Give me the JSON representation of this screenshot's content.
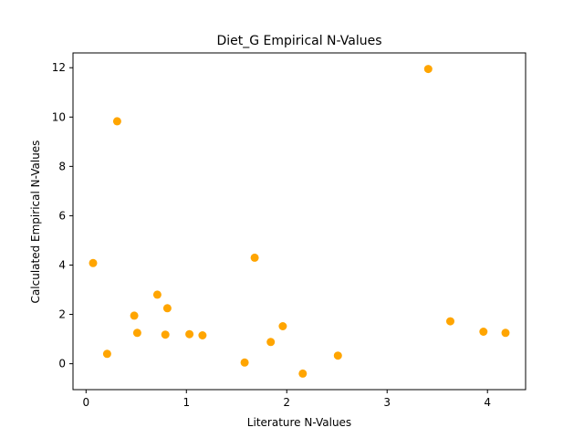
{
  "chart_data": {
    "type": "scatter",
    "title": "Diet_G Empirical N-Values",
    "xlabel": "Literature N-Values",
    "ylabel": "Calculated Empirical N-Values",
    "xlim": [
      -0.13,
      4.38
    ],
    "ylim": [
      -1.05,
      12.6
    ],
    "xticks": [
      0,
      1,
      2,
      3,
      4
    ],
    "yticks": [
      0,
      2,
      4,
      6,
      8,
      10,
      12
    ],
    "grid": false,
    "marker_color": "#ffa500",
    "points": [
      {
        "x": 0.07,
        "y": 4.08
      },
      {
        "x": 0.21,
        "y": 0.4
      },
      {
        "x": 0.31,
        "y": 9.83
      },
      {
        "x": 0.48,
        "y": 1.95
      },
      {
        "x": 0.51,
        "y": 1.25
      },
      {
        "x": 0.71,
        "y": 2.8
      },
      {
        "x": 0.79,
        "y": 1.18
      },
      {
        "x": 0.81,
        "y": 2.25
      },
      {
        "x": 1.03,
        "y": 1.2
      },
      {
        "x": 1.16,
        "y": 1.15
      },
      {
        "x": 1.58,
        "y": 0.05
      },
      {
        "x": 1.68,
        "y": 4.3
      },
      {
        "x": 1.84,
        "y": 0.88
      },
      {
        "x": 1.96,
        "y": 1.52
      },
      {
        "x": 2.16,
        "y": -0.4
      },
      {
        "x": 2.51,
        "y": 0.33
      },
      {
        "x": 3.41,
        "y": 11.95
      },
      {
        "x": 3.63,
        "y": 1.72
      },
      {
        "x": 3.96,
        "y": 1.3
      },
      {
        "x": 4.18,
        "y": 1.25
      }
    ]
  }
}
